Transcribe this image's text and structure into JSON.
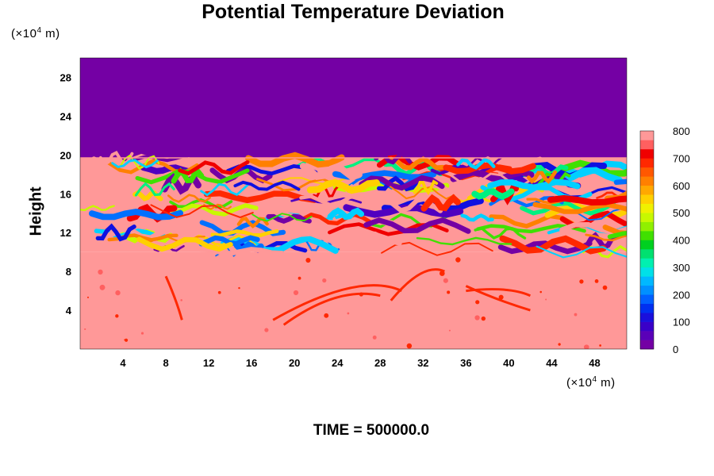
{
  "chart_data": {
    "type": "heatmap",
    "title": "Potential Temperature Deviation",
    "xlabel": "",
    "ylabel": "Height",
    "x_unit_prefix": "(×10",
    "x_unit_exp": "4",
    "x_unit_suffix": " m)",
    "y_unit_prefix": "(×10",
    "y_unit_exp": "4",
    "y_unit_suffix": " m)",
    "xlim": [
      0,
      51
    ],
    "ylim": [
      0,
      30
    ],
    "x_ticks": [
      4,
      8,
      12,
      16,
      20,
      24,
      28,
      32,
      36,
      40,
      44,
      48
    ],
    "y_ticks": [
      4,
      8,
      12,
      16,
      20,
      24,
      28
    ],
    "colorbar": {
      "range": [
        0,
        800
      ],
      "ticks": [
        0,
        100,
        200,
        300,
        400,
        500,
        600,
        700,
        800
      ],
      "colors": [
        "#7400a4",
        "#5a00b8",
        "#3a00c8",
        "#1a10dc",
        "#0030f0",
        "#0060ff",
        "#0090ff",
        "#00b8ff",
        "#00e0e8",
        "#00f0b0",
        "#00e070",
        "#00d020",
        "#40e000",
        "#90f000",
        "#c8f800",
        "#f0f000",
        "#ffd000",
        "#ffa800",
        "#ff8000",
        "#ff5800",
        "#ff2800",
        "#f00000",
        "#ff6060",
        "#ff9898"
      ]
    },
    "regions": [
      {
        "y_range": [
          0,
          10
        ],
        "value": 800,
        "description": "smooth lower layer with scattered red filaments"
      },
      {
        "y_range": [
          10,
          19.7
        ],
        "value": "mixed 0-800",
        "description": "turbulent mixing layer"
      },
      {
        "y_range": [
          19.7,
          30
        ],
        "value": 0,
        "description": "upper layer"
      }
    ]
  },
  "footer": "TIME = 500000.0"
}
